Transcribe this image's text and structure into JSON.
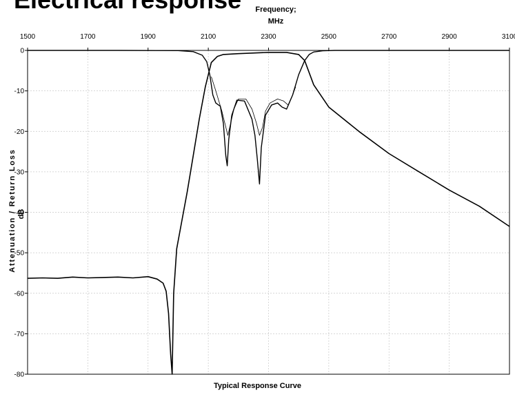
{
  "page": {
    "title": "Electrical response"
  },
  "chart_data": {
    "type": "line",
    "title": "Electrical response",
    "xlabel_line1": "Frequency;",
    "xlabel_line2": "MHz",
    "ylabel": "Attenuation / Return Loss",
    "yunit": "dB",
    "caption": "Typical Response Curve",
    "xlim": [
      1500,
      3100
    ],
    "ylim": [
      -80,
      0
    ],
    "x_ticks": [
      1500,
      1700,
      1900,
      2100,
      2300,
      2500,
      2700,
      2900,
      3100
    ],
    "y_ticks": [
      0,
      -10,
      -20,
      -30,
      -40,
      -50,
      -60,
      -70,
      -80
    ],
    "grid": true,
    "series": [
      {
        "x": [
          1500,
          1550,
          1600,
          1650,
          1700,
          1750,
          1800,
          1850,
          1900,
          1930,
          1950,
          1960,
          1968,
          1975,
          1980,
          1985,
          1995,
          2010,
          2030,
          2050,
          2070,
          2090,
          2110,
          2130,
          2150,
          2200,
          2300,
          2360,
          2400,
          2420,
          2450,
          2500,
          2600,
          2700,
          2800,
          2900,
          3000,
          3100
        ],
        "y": [
          -56.3,
          -56.2,
          -56.3,
          -56.0,
          -56.2,
          -56.1,
          -56.0,
          -56.2,
          -55.9,
          -56.5,
          -57.5,
          -59.5,
          -65,
          -75,
          -80,
          -60,
          -49,
          -43,
          -35,
          -26,
          -17,
          -9,
          -3,
          -1.5,
          -1.0,
          -0.8,
          -0.5,
          -0.5,
          -1.0,
          -2.5,
          -8.5,
          -14,
          -20,
          -25.5,
          -30,
          -34.5,
          -38.5,
          -43.5
        ]
      },
      {
        "x": [
          1500,
          1800,
          2000,
          2050,
          2080,
          2095,
          2105,
          2115,
          2125,
          2140,
          2150,
          2158,
          2163,
          2168,
          2178,
          2195,
          2220,
          2245,
          2255,
          2263,
          2270,
          2276,
          2290,
          2310,
          2330,
          2345,
          2360,
          2380,
          2400,
          2420,
          2435,
          2450,
          2480,
          2520,
          3100
        ],
        "y": [
          0,
          0,
          -0.05,
          -0.3,
          -1.2,
          -2.8,
          -6,
          -11,
          -13,
          -13.8,
          -18,
          -26,
          -28.5,
          -22,
          -16,
          -12.3,
          -12.5,
          -17,
          -21,
          -27,
          -33,
          -24,
          -16,
          -13.5,
          -13,
          -14,
          -14.5,
          -11,
          -6,
          -2.5,
          -1,
          -0.4,
          -0.1,
          0,
          0
        ]
      },
      {
        "x": [
          2110,
          2125,
          2145,
          2165,
          2185,
          2200,
          2225,
          2245,
          2260,
          2270,
          2280,
          2290,
          2305,
          2330,
          2350,
          2365,
          2380,
          2390
        ],
        "y": [
          -6.5,
          -10,
          -15,
          -21,
          -14.5,
          -12,
          -12,
          -14.5,
          -18,
          -21,
          -19,
          -15,
          -13,
          -12,
          -12.5,
          -13.5,
          -11,
          -9
        ]
      }
    ]
  }
}
